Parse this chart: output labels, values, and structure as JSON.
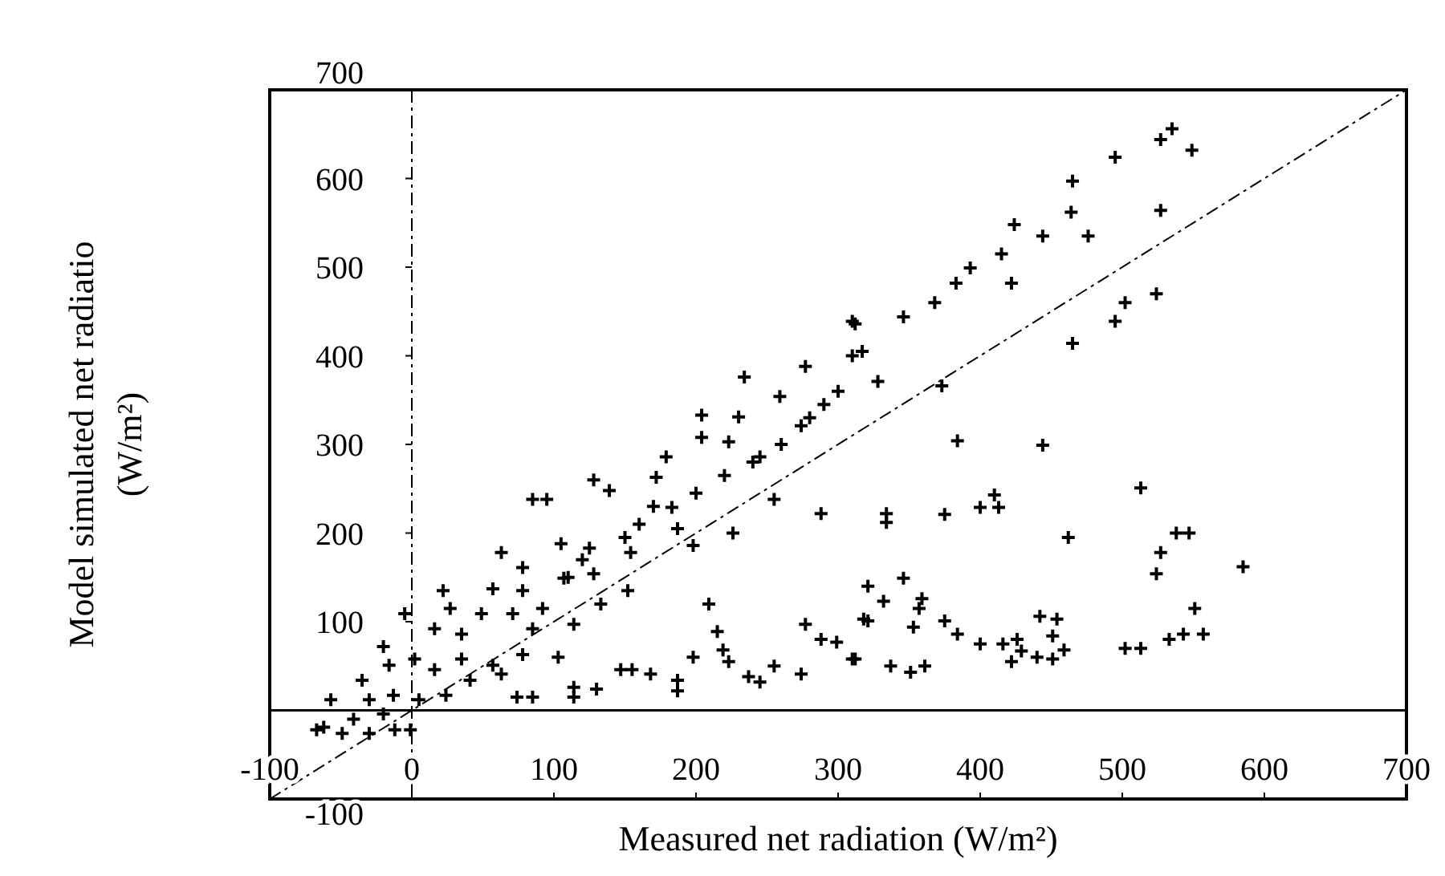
{
  "chart_data": {
    "type": "scatter",
    "xlabel": "Measured net radiation (W/m²)",
    "ylabel": "Model simulated net radiatio\n(W/m²)",
    "xlim": [
      -100,
      700
    ],
    "ylim": [
      -100,
      700
    ],
    "xticks": [
      -100,
      0,
      100,
      200,
      300,
      400,
      500,
      600,
      700
    ],
    "yticks": [
      -100,
      100,
      200,
      300,
      400,
      500,
      600,
      700
    ],
    "grid": false,
    "marker": "cross",
    "ref_lines": [
      {
        "axis": "y",
        "value": 0,
        "line_style": "solid"
      },
      {
        "axis": "x",
        "value": 0,
        "line_style": "dashed"
      }
    ],
    "series": [
      {
        "type": "scatter",
        "color": "#000000",
        "marker": "cross",
        "x": [
          535,
          549,
          527,
          495,
          465,
          527,
          476,
          464,
          444,
          424,
          415,
          393,
          383,
          368,
          422,
          346,
          312,
          328,
          310,
          524,
          502,
          495,
          465,
          373,
          384,
          444,
          310,
          317,
          277,
          234,
          259,
          204,
          230,
          223,
          245,
          274,
          204,
          179,
          128,
          85,
          95,
          139,
          172,
          183,
          255,
          288,
          226,
          198,
          187,
          154,
          125,
          105,
          63,
          78,
          57,
          22,
          78,
          107,
          128,
          152,
          133,
          92,
          114,
          85,
          71,
          49,
          27,
          -5,
          16,
          35,
          57,
          78,
          103,
          -20,
          -16,
          2,
          16,
          35,
          -35,
          -57,
          -30,
          -13,
          5,
          24,
          41,
          63,
          -67,
          -49,
          -30,
          -12,
          -1,
          -41,
          -20,
          -62,
          74,
          85,
          114,
          114,
          130,
          147,
          155,
          168,
          187,
          187,
          198,
          209,
          215,
          219,
          223,
          237,
          245,
          255,
          274,
          277,
          288,
          299,
          310,
          318,
          321,
          334,
          334,
          375,
          400,
          410,
          413,
          462,
          513,
          538,
          547,
          527,
          524,
          585,
          346,
          332,
          359,
          357,
          321,
          353,
          375,
          384,
          400,
          312,
          337,
          351,
          361,
          416,
          426,
          429,
          440,
          422,
          442,
          454,
          451,
          459,
          451,
          502,
          513,
          533,
          543,
          557,
          551,
          200,
          220,
          240,
          260,
          280,
          300,
          290,
          150,
          160,
          110,
          120,
          170
        ],
        "values": [
          656,
          632,
          644,
          624,
          597,
          564,
          535,
          562,
          535,
          548,
          515,
          499,
          482,
          460,
          482,
          444,
          436,
          371,
          400,
          470,
          460,
          439,
          414,
          366,
          304,
          299,
          439,
          405,
          388,
          376,
          354,
          333,
          331,
          303,
          286,
          321,
          308,
          286,
          260,
          238,
          238,
          248,
          263,
          229,
          238,
          222,
          200,
          186,
          205,
          178,
          183,
          188,
          178,
          161,
          137,
          135,
          135,
          149,
          154,
          135,
          120,
          115,
          97,
          92,
          109,
          109,
          115,
          109,
          92,
          86,
          51,
          63,
          60,
          72,
          51,
          58,
          46,
          58,
          34,
          12,
          12,
          17,
          12,
          17,
          34,
          41,
          -22,
          -26,
          -26,
          -22,
          -22,
          -10,
          -4,
          -19,
          15,
          15,
          26,
          15,
          24,
          46,
          46,
          41,
          34,
          22,
          60,
          120,
          89,
          68,
          55,
          38,
          32,
          50,
          41,
          97,
          80,
          77,
          58,
          103,
          140,
          222,
          212,
          221,
          229,
          243,
          229,
          195,
          251,
          200,
          200,
          178,
          154,
          162,
          149,
          123,
          126,
          115,
          101,
          94,
          101,
          86,
          75,
          58,
          50,
          43,
          50,
          75,
          80,
          67,
          60,
          55,
          106,
          103,
          84,
          68,
          58,
          70,
          70,
          80,
          86,
          86,
          115,
          245,
          265,
          280,
          300,
          330,
          360,
          345,
          195,
          210,
          150,
          170,
          230
        ]
      },
      {
        "type": "line",
        "color": "#000000",
        "line_style": "dashed",
        "marker": "none",
        "x": [
          -100,
          700
        ],
        "values": [
          -100,
          700
        ]
      }
    ]
  }
}
